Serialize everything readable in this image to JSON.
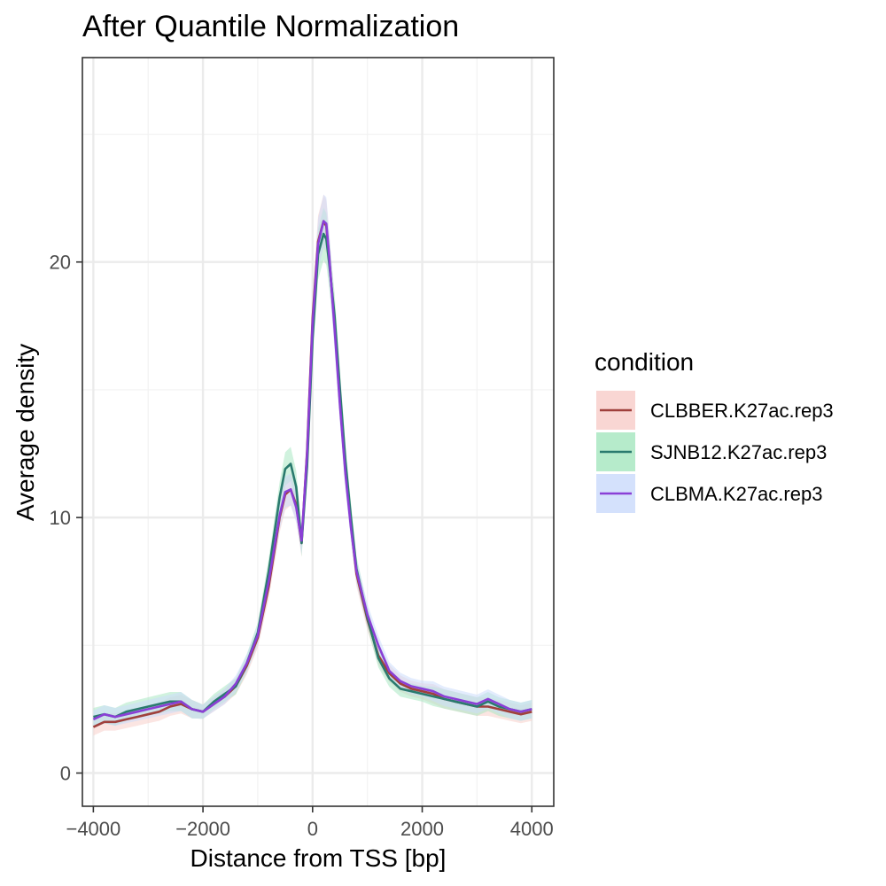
{
  "chart_data": {
    "type": "line",
    "title": "After Quantile Normalization",
    "xlabel": "Distance from TSS [bp]",
    "ylabel": "Average density",
    "xlim": [
      -4200,
      4400
    ],
    "ylim": [
      -1.3,
      28.0
    ],
    "x_ticks": [
      -4000,
      -2000,
      0,
      2000,
      4000
    ],
    "x_tick_labels": [
      "−4000",
      "−2000",
      "0",
      "2000",
      "4000"
    ],
    "y_ticks": [
      0,
      10,
      20
    ],
    "y_tick_labels": [
      "0",
      "10",
      "20"
    ],
    "grid": true,
    "legend": {
      "title": "condition",
      "position": "right"
    },
    "x": [
      -4000,
      -3800,
      -3600,
      -3400,
      -3200,
      -3000,
      -2800,
      -2600,
      -2400,
      -2200,
      -2000,
      -1800,
      -1600,
      -1400,
      -1200,
      -1000,
      -800,
      -600,
      -500,
      -400,
      -300,
      -200,
      -100,
      0,
      100,
      200,
      250,
      300,
      400,
      500,
      600,
      700,
      800,
      1000,
      1200,
      1400,
      1600,
      1800,
      2000,
      2200,
      2400,
      2600,
      2800,
      3000,
      3200,
      3400,
      3600,
      3800,
      4000
    ],
    "series": [
      {
        "name": "CLBBER.K27ac.rep3",
        "color": "#a0403c",
        "ribbon_color": "#f8cfcb",
        "values": [
          1.8,
          2.0,
          2.0,
          2.1,
          2.2,
          2.3,
          2.4,
          2.6,
          2.7,
          2.5,
          2.4,
          2.7,
          3.0,
          3.4,
          4.2,
          5.3,
          7.3,
          10.0,
          10.9,
          11.1,
          10.5,
          9.0,
          12.6,
          17.8,
          20.8,
          21.6,
          21.4,
          20.2,
          17.6,
          14.5,
          11.8,
          9.7,
          7.8,
          6.0,
          4.6,
          3.9,
          3.5,
          3.3,
          3.2,
          3.1,
          2.9,
          2.8,
          2.7,
          2.6,
          2.6,
          2.5,
          2.4,
          2.3,
          2.4
        ]
      },
      {
        "name": "SJNB12.K27ac.rep3",
        "color": "#2a7a6e",
        "ribbon_color": "#a9e8c2",
        "values": [
          2.2,
          2.3,
          2.2,
          2.4,
          2.5,
          2.6,
          2.7,
          2.8,
          2.8,
          2.5,
          2.4,
          2.8,
          3.1,
          3.4,
          4.3,
          5.5,
          7.9,
          10.8,
          11.9,
          12.1,
          11.2,
          9.0,
          12.0,
          17.0,
          20.3,
          21.1,
          20.9,
          20.0,
          17.9,
          15.0,
          12.2,
          10.0,
          8.0,
          6.1,
          4.5,
          3.7,
          3.3,
          3.2,
          3.1,
          3.0,
          2.9,
          2.8,
          2.7,
          2.6,
          2.8,
          2.6,
          2.5,
          2.4,
          2.5
        ]
      },
      {
        "name": "CLBMA.K27ac.rep3",
        "color": "#8a3fd6",
        "ribbon_color": "#ccdcfb",
        "values": [
          2.1,
          2.3,
          2.2,
          2.3,
          2.4,
          2.5,
          2.6,
          2.7,
          2.8,
          2.5,
          2.4,
          2.7,
          3.0,
          3.5,
          4.3,
          5.4,
          7.5,
          10.1,
          11.0,
          11.1,
          10.4,
          9.1,
          12.5,
          17.6,
          20.7,
          21.6,
          21.5,
          20.3,
          17.4,
          14.4,
          11.7,
          9.6,
          7.9,
          6.2,
          5.0,
          4.0,
          3.6,
          3.4,
          3.3,
          3.2,
          3.0,
          2.9,
          2.8,
          2.7,
          2.9,
          2.7,
          2.5,
          2.4,
          2.5
        ]
      }
    ]
  }
}
